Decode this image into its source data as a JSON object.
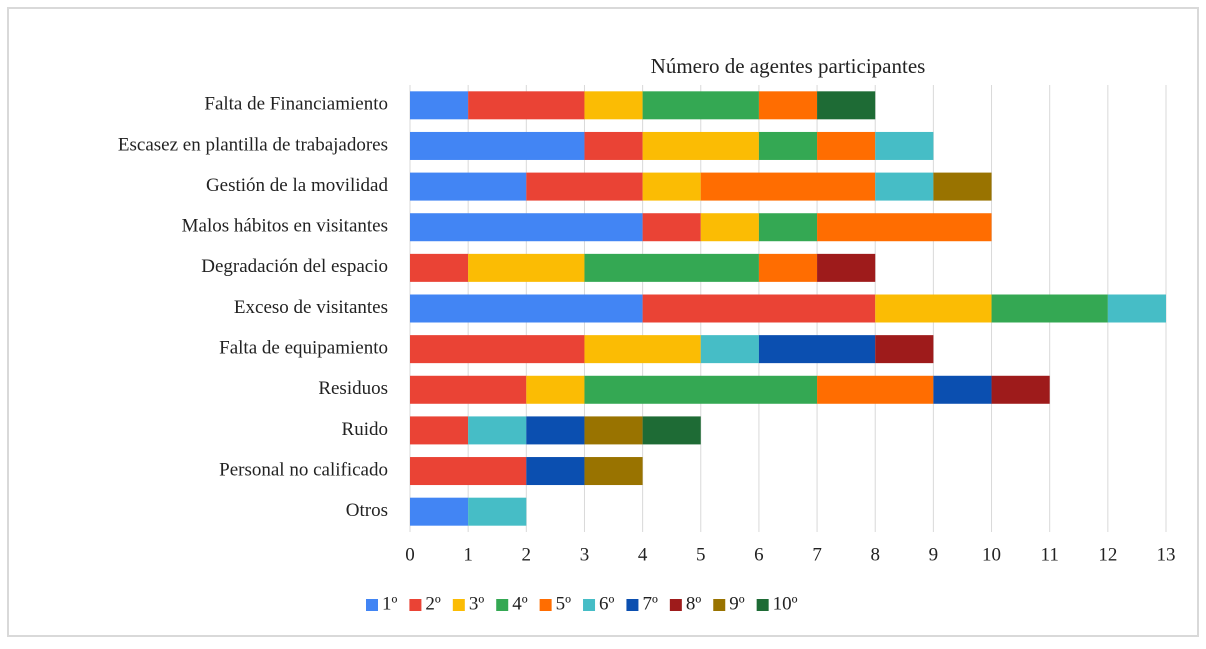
{
  "chart_data": {
    "type": "stacked-bar-horizontal",
    "title": "Número de agentes participantes",
    "categories": [
      "Falta de Financiamiento",
      "Escasez en plantilla de trabajadores",
      "Gestión de la movilidad",
      "Malos hábitos en visitantes",
      "Degradación del espacio",
      "Exceso de visitantes",
      "Falta de equipamiento",
      "Residuos",
      "Ruido",
      "Personal no calificado",
      "Otros"
    ],
    "series": [
      {
        "name": "1º",
        "color": "#4285f4",
        "values": [
          1,
          3,
          2,
          4,
          0,
          4,
          0,
          0,
          0,
          0,
          1
        ]
      },
      {
        "name": "2º",
        "color": "#ea4335",
        "values": [
          2,
          1,
          2,
          1,
          1,
          4,
          3,
          2,
          1,
          2,
          0
        ]
      },
      {
        "name": "3º",
        "color": "#fbbc04",
        "values": [
          1,
          2,
          1,
          1,
          2,
          2,
          2,
          1,
          0,
          0,
          0
        ]
      },
      {
        "name": "4º",
        "color": "#34a853",
        "values": [
          2,
          1,
          0,
          1,
          3,
          2,
          0,
          4,
          0,
          0,
          0
        ]
      },
      {
        "name": "5º",
        "color": "#ff6d01",
        "values": [
          1,
          1,
          3,
          3,
          1,
          0,
          0,
          2,
          0,
          0,
          0
        ]
      },
      {
        "name": "6º",
        "color": "#46bdc6",
        "values": [
          0,
          1,
          1,
          0,
          0,
          1,
          1,
          0,
          1,
          0,
          1
        ]
      },
      {
        "name": "7º",
        "color": "#0b4fb0",
        "values": [
          0,
          0,
          0,
          0,
          0,
          0,
          2,
          1,
          1,
          1,
          0
        ]
      },
      {
        "name": "8º",
        "color": "#9e1b1b",
        "values": [
          0,
          0,
          0,
          0,
          1,
          0,
          1,
          1,
          0,
          0,
          0
        ]
      },
      {
        "name": "9º",
        "color": "#997300",
        "values": [
          0,
          0,
          1,
          0,
          0,
          0,
          0,
          0,
          1,
          1,
          0
        ]
      },
      {
        "name": "10º",
        "color": "#1e6b35",
        "values": [
          1,
          0,
          0,
          0,
          0,
          0,
          0,
          0,
          1,
          0,
          0
        ]
      }
    ],
    "xlim": [
      0,
      13
    ],
    "xticks": [
      0,
      1,
      2,
      3,
      4,
      5,
      6,
      7,
      8,
      9,
      10,
      11,
      12,
      13
    ],
    "grid": true,
    "legend": "bottom"
  }
}
